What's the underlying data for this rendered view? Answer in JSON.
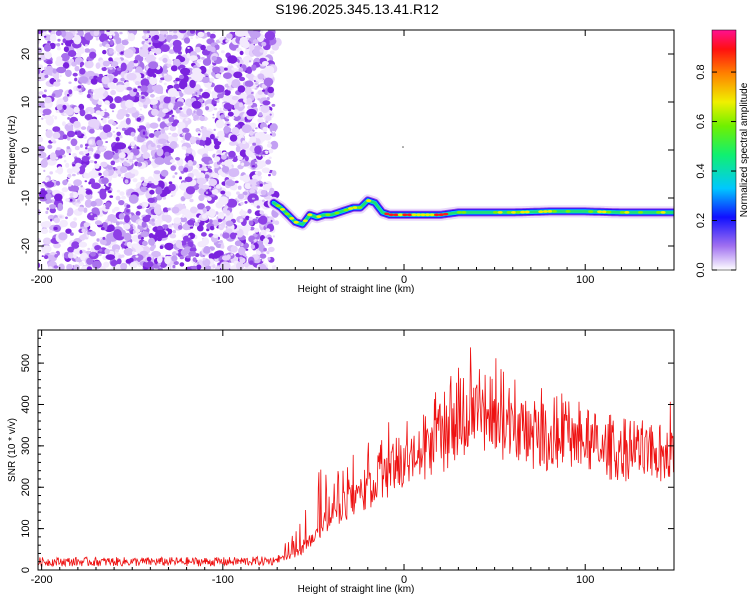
{
  "title": "S196.2025.345.13.41.R12",
  "chart_data": [
    {
      "type": "heatmap",
      "name": "spectrogram",
      "xlabel": "Height of straight line (km)",
      "ylabel": "Frequency (Hz)",
      "xlim": [
        -202,
        149
      ],
      "ylim": [
        -25,
        25
      ],
      "xticks": [
        -200,
        -100,
        0,
        100
      ],
      "yticks": [
        -20,
        -10,
        0,
        10,
        20
      ],
      "colorbar": {
        "label": "Normalized spectral amplitude",
        "range": [
          0,
          0.97
        ],
        "ticks": [
          "0.0",
          "0.2",
          "0.4",
          "0.6",
          "0.8"
        ],
        "tick_values": [
          0,
          0.2,
          0.4,
          0.6,
          0.8
        ]
      },
      "noise_region_km": [
        -202,
        -72
      ],
      "signal_track": {
        "x": [
          -72,
          -68,
          -64,
          -60,
          -56,
          -52,
          -48,
          -44,
          -40,
          -36,
          -32,
          -28,
          -24,
          -20,
          -16,
          -12,
          -8,
          -4,
          0,
          10,
          20,
          30,
          40,
          60,
          80,
          100,
          120,
          149
        ],
        "freq_hz": [
          -11,
          -12,
          -13.5,
          -15,
          -15.5,
          -13.5,
          -14,
          -13.5,
          -13.5,
          -13,
          -12.5,
          -12,
          -12,
          -10.5,
          -11,
          -13,
          -13.5,
          -13.5,
          -13.5,
          -13.5,
          -13.5,
          -13,
          -13,
          -13,
          -12.8,
          -12.8,
          -13,
          -13
        ]
      }
    },
    {
      "type": "line",
      "name": "snr",
      "xlabel": "Height of straight line (km)",
      "ylabel": "SNR (10 * v/v)",
      "xlim": [
        -202,
        149
      ],
      "ylim": [
        0,
        580
      ],
      "xticks": [
        -200,
        -100,
        0,
        100
      ],
      "yticks": [
        0,
        100,
        200,
        300,
        400,
        500
      ],
      "color": "#ee1111",
      "envelope": {
        "x": [
          -202,
          -150,
          -100,
          -72,
          -60,
          -50,
          -40,
          -30,
          -20,
          -10,
          0,
          10,
          20,
          30,
          40,
          50,
          60,
          70,
          80,
          90,
          100,
          110,
          120,
          130,
          140,
          149
        ],
        "baseline": [
          20,
          20,
          20,
          22,
          40,
          80,
          140,
          180,
          210,
          240,
          270,
          300,
          330,
          370,
          390,
          380,
          360,
          350,
          340,
          330,
          320,
          310,
          305,
          300,
          300,
          310
        ],
        "peaks": [
          30,
          30,
          30,
          35,
          90,
          260,
          230,
          280,
          320,
          360,
          350,
          420,
          440,
          500,
          560,
          520,
          480,
          460,
          440,
          430,
          400,
          380,
          370,
          360,
          350,
          430
        ]
      }
    }
  ]
}
